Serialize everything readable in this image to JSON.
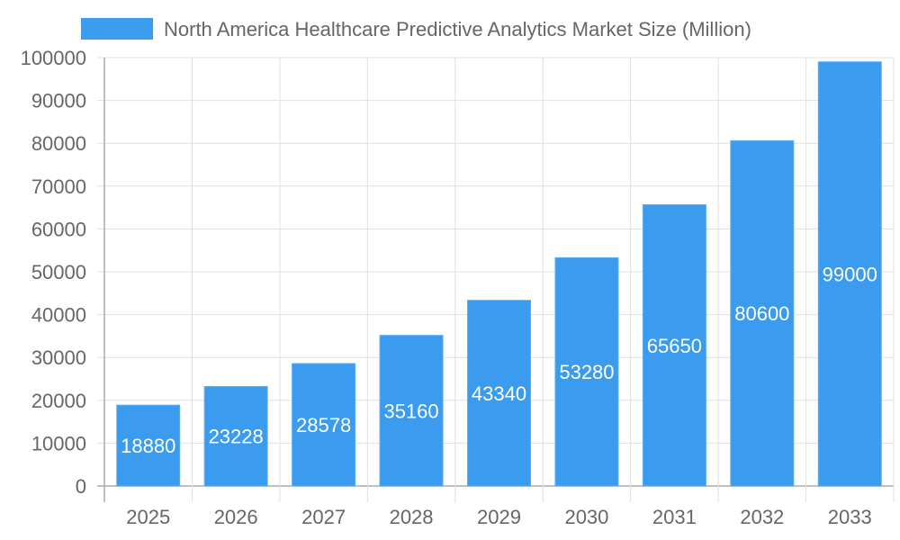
{
  "chart_data": {
    "type": "bar",
    "title": "",
    "legend": [
      {
        "label": "North America Healthcare Predictive Analytics Market Size (Million)",
        "color": "#3a9bef"
      }
    ],
    "legend_position": "top",
    "categories": [
      "2025",
      "2026",
      "2027",
      "2028",
      "2029",
      "2030",
      "2031",
      "2032",
      "2033"
    ],
    "series": [
      {
        "name": "North America Healthcare Predictive Analytics Market Size (Million)",
        "values": [
          18880,
          23228,
          28578,
          35160,
          43340,
          53280,
          65650,
          80600,
          99000
        ]
      }
    ],
    "xlabel": "",
    "ylabel": "",
    "ylim": [
      0,
      100000
    ],
    "yticks": [
      "0",
      "10000",
      "20000",
      "30000",
      "40000",
      "50000",
      "60000",
      "70000",
      "80000",
      "90000",
      "100000"
    ],
    "grid": true,
    "data_labels": true
  },
  "colors": {
    "bar": "#3a9bef",
    "grid": "#e0e0e0",
    "axis": "#aaaaaa",
    "text": "#666666",
    "label": "#ffffff"
  }
}
